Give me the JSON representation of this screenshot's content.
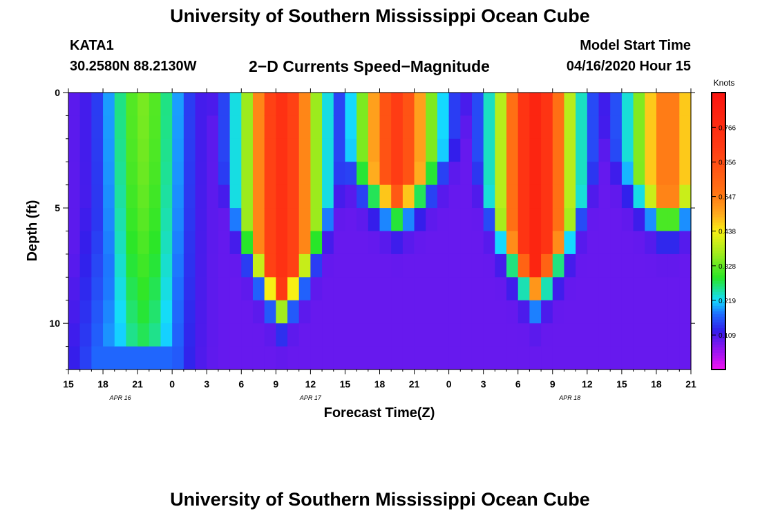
{
  "header": {
    "title": "University of Southern Mississippi Ocean Cube",
    "station_id": "KATA1",
    "station_coords": "30.2580N 88.2130W",
    "subtitle": "2−D Currents Speed−Magnitude",
    "model_start_label": "Model Start Time",
    "model_start_value": "04/16/2020 Hour 15"
  },
  "footer": {
    "title": "University of Southern Mississippi Ocean Cube"
  },
  "chart_data": {
    "type": "heatmap",
    "title": "2−D Currents Speed−Magnitude",
    "xlabel": "Forecast Time(Z)",
    "ylabel": "Depth (ft)",
    "colorbar_label": "Knots",
    "colorbar_ticks": [
      "0.109",
      "0.219",
      "0.328",
      "0.438",
      "0.547",
      "0.656",
      "0.766"
    ],
    "colorbar_range": [
      0.0,
      0.876
    ],
    "x_tick_labels": [
      "15",
      "18",
      "21",
      "0",
      "3",
      "6",
      "9",
      "12",
      "15",
      "18",
      "21",
      "0",
      "3",
      "6",
      "9",
      "12",
      "15",
      "18",
      "21"
    ],
    "x_range_hours": [
      0,
      54
    ],
    "date_labels": [
      {
        "label": "APR  16",
        "hour": 4.5
      },
      {
        "label": "APR  17",
        "hour": 21
      },
      {
        "label": "APR  18",
        "hour": 43.5
      }
    ],
    "y_tick_labels": [
      "0",
      "5",
      "10"
    ],
    "y_major_ticks": [
      0,
      5,
      10
    ],
    "y_range_ft": [
      0,
      12
    ],
    "depth_levels": 12,
    "time_steps": 54,
    "regions": [
      {
        "t_start": 0,
        "t_end": 4.5,
        "sequence": [
          {
            "t": 0,
            "surface": 0.05,
            "bottom": 0.12
          },
          {
            "t": 3,
            "surface": 0.08,
            "bottom": 0.12
          },
          {
            "t": 4.5,
            "surface": 0.17,
            "bottom": 0.15
          }
        ]
      },
      {
        "peak_hour": 6.5,
        "peak_surface": 0.34,
        "peak_deep": 0.3,
        "decay_ft": 1.5
      },
      {
        "low_hour": 9.5,
        "min_speed": 0.07
      },
      {
        "peak_hour": 18.5,
        "peak_surface": 0.75,
        "depth_ft": 8.2
      },
      {
        "low_hour": 23.5,
        "min_speed": 0.1
      },
      {
        "peak_hour": 28.5,
        "peak_surface": 0.7,
        "depth_ft": 4.0
      },
      {
        "low_hour": 33,
        "min_speed": 0.1
      },
      {
        "peak_hour": 40.5,
        "peak_surface": 0.8,
        "depth_ft": 7.5
      },
      {
        "low_hour": 45,
        "min_speed": 0.1
      },
      {
        "peak_hour": 52,
        "peak_surface": 0.56,
        "depth_ft": 4.5
      }
    ]
  }
}
